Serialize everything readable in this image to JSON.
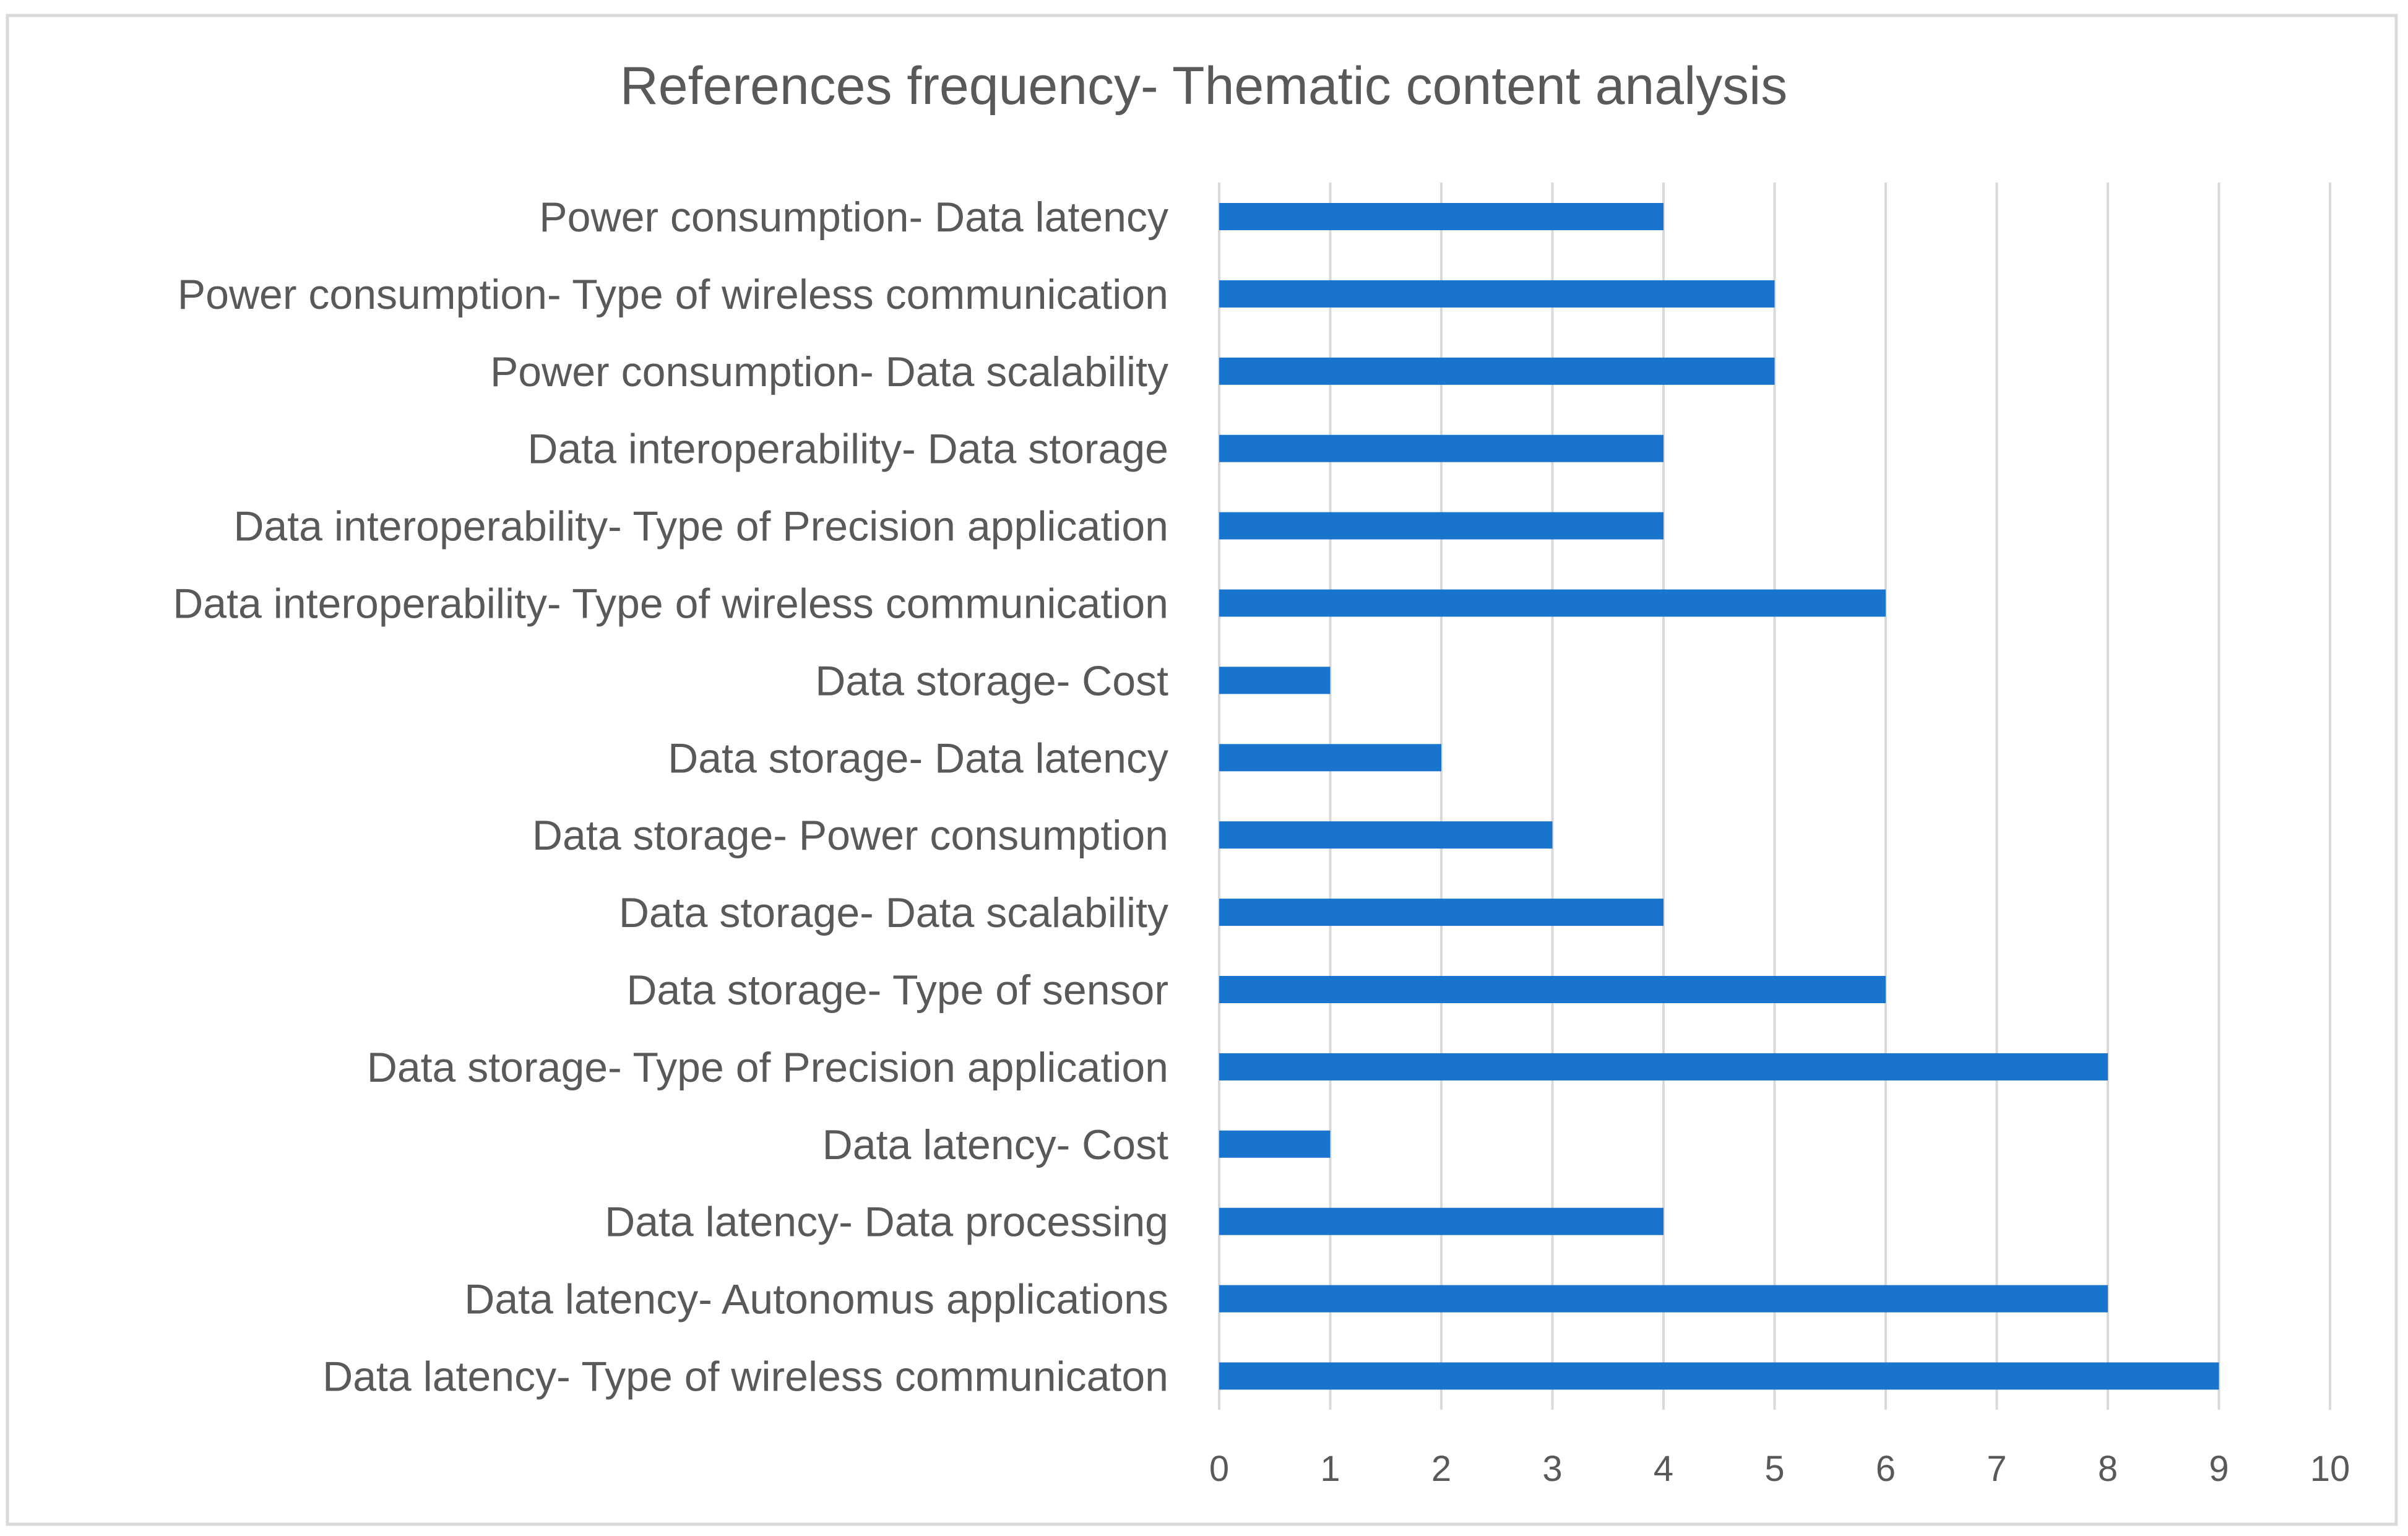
{
  "chart_data": {
    "type": "bar",
    "orientation": "horizontal",
    "title": "References frequency- Thematic content analysis",
    "xlabel": "",
    "ylabel": "",
    "xlim": [
      0,
      10
    ],
    "grid": true,
    "legend": "none",
    "bar_color": "#1874CD",
    "x_ticks": [
      "0",
      "1",
      "2",
      "3",
      "4",
      "5",
      "6",
      "7",
      "8",
      "9",
      "10"
    ],
    "categories": [
      "Power consumption- Data latency",
      "Power consumption- Type of wireless communication",
      "Power consumption- Data scalability",
      "Data interoperability- Data storage",
      "Data interoperability- Type of Precision application",
      "Data interoperability- Type of wireless communication",
      "Data storage- Cost",
      "Data storage- Data latency",
      "Data storage- Power consumption",
      "Data storage- Data scalability",
      "Data storage- Type of sensor",
      "Data storage- Type of Precision application",
      "Data latency- Cost",
      "Data latency- Data processing",
      "Data latency- Autonomus applications",
      "Data latency- Type of wireless communicaton"
    ],
    "values": [
      4,
      5,
      5,
      4,
      4,
      6,
      1,
      2,
      3,
      4,
      6,
      8,
      1,
      4,
      8,
      9
    ]
  }
}
